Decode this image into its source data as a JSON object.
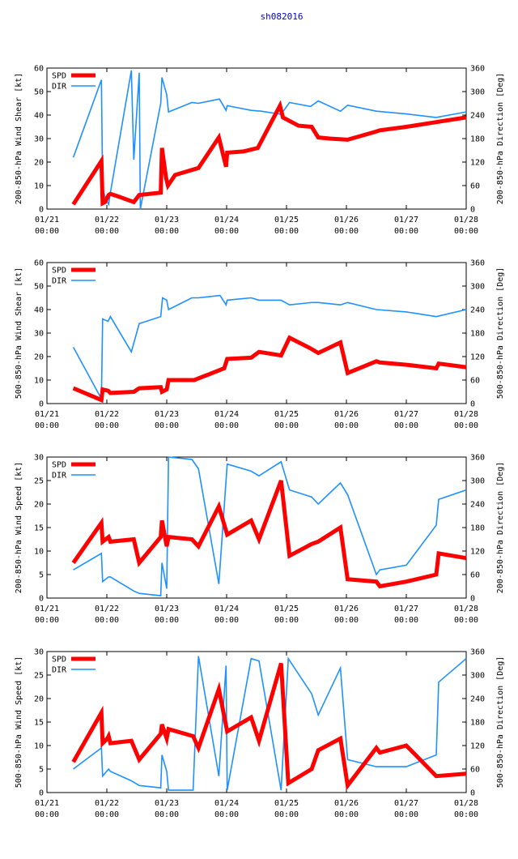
{
  "page_title": "sh082016",
  "colors": {
    "spd": "#ff0000",
    "dir": "#1e90ff",
    "title": "#0000cc"
  },
  "legend": {
    "spd_label": "SPD",
    "dir_label": "DIR"
  },
  "chart_data": [
    {
      "type": "line",
      "ylabel_left": "200-850-hPa Wind Shear [kt]",
      "ylabel_right": "200-850-hPa Direction [Deg]",
      "xlim": [
        0,
        7
      ],
      "ylim_left": [
        0,
        60
      ],
      "ylim_right": [
        0,
        360
      ],
      "x_ticks": [
        {
          "v": 0,
          "line1": "01/21",
          "line2": "00:00"
        },
        {
          "v": 1,
          "line1": "01/22",
          "line2": "00:00"
        },
        {
          "v": 2,
          "line1": "01/23",
          "line2": "00:00"
        },
        {
          "v": 3,
          "line1": "01/24",
          "line2": "00:00"
        },
        {
          "v": 4,
          "line1": "01/25",
          "line2": "00:00"
        },
        {
          "v": 5,
          "line1": "01/26",
          "line2": "00:00"
        },
        {
          "v": 6,
          "line1": "01/27",
          "line2": "00:00"
        },
        {
          "v": 7,
          "line1": "01/28",
          "line2": "00:00"
        }
      ],
      "y_ticks_left": [
        0,
        10,
        20,
        30,
        40,
        50,
        60
      ],
      "y_ticks_right": [
        0,
        60,
        120,
        180,
        240,
        300,
        360
      ],
      "series": [
        {
          "name": "SPD",
          "axis": "left",
          "x": [
            0.44,
            0.91,
            0.93,
            0.97,
            1.03,
            1.06,
            1.18,
            1.45,
            1.54,
            1.9,
            1.92,
            1.99,
            2.02,
            2.14,
            2.53,
            2.87,
            2.99,
            3.01,
            3.28,
            3.52,
            3.89,
            3.94,
            4.2,
            4.42,
            4.53,
            4.72,
            5.02,
            5.5,
            5.56,
            6.0,
            6.5,
            7.0
          ],
          "values": [
            2,
            20.5,
            2.5,
            3,
            6,
            6.5,
            5.5,
            3,
            6,
            7,
            26,
            13,
            10,
            14.5,
            17.5,
            30.5,
            18,
            24,
            24.5,
            26,
            44,
            39,
            35.5,
            35,
            30.5,
            30,
            29.5,
            33,
            33.5,
            35,
            37,
            39
          ]
        },
        {
          "name": "DIR",
          "axis": "right",
          "x": [
            0.44,
            0.91,
            0.93,
            0.97,
            1.03,
            1.06,
            1.41,
            1.45,
            1.54,
            1.56,
            1.9,
            1.92,
            2.0,
            2.03,
            2.42,
            2.53,
            2.88,
            2.99,
            3.01,
            3.41,
            3.58,
            3.91,
            4.05,
            4.4,
            4.53,
            4.9,
            5.02,
            5.5,
            6.0,
            6.5,
            7.0
          ],
          "values": [
            132,
            330,
            54,
            30,
            12,
            42,
            354,
            126,
            348,
            0,
            270,
            336,
            292,
            248,
            272,
            270,
            281,
            252,
            264,
            252,
            250,
            242,
            272,
            262,
            276,
            250,
            265,
            250,
            243,
            234,
            248
          ]
        }
      ]
    },
    {
      "type": "line",
      "ylabel_left": "500-850-hPa Wind Shear [kt]",
      "ylabel_right": "500-850-hPa Direction [Deg]",
      "xlim": [
        0,
        7
      ],
      "ylim_left": [
        0,
        60
      ],
      "ylim_right": [
        0,
        360
      ],
      "x_ticks": [
        {
          "v": 0,
          "line1": "01/21",
          "line2": "00:00"
        },
        {
          "v": 1,
          "line1": "01/22",
          "line2": "00:00"
        },
        {
          "v": 2,
          "line1": "01/23",
          "line2": "00:00"
        },
        {
          "v": 3,
          "line1": "01/24",
          "line2": "00:00"
        },
        {
          "v": 4,
          "line1": "01/25",
          "line2": "00:00"
        },
        {
          "v": 5,
          "line1": "01/26",
          "line2": "00:00"
        },
        {
          "v": 6,
          "line1": "01/27",
          "line2": "00:00"
        },
        {
          "v": 7,
          "line1": "01/28",
          "line2": "00:00"
        }
      ],
      "y_ticks_left": [
        0,
        10,
        20,
        30,
        40,
        50,
        60
      ],
      "y_ticks_right": [
        0,
        60,
        120,
        180,
        240,
        300,
        360
      ],
      "series": [
        {
          "name": "SPD",
          "axis": "left",
          "x": [
            0.44,
            0.91,
            0.93,
            1.02,
            1.06,
            1.45,
            1.54,
            1.9,
            1.92,
            2.0,
            2.03,
            2.46,
            2.96,
            3.01,
            3.41,
            3.54,
            3.91,
            4.05,
            4.4,
            4.53,
            4.9,
            5.02,
            5.5,
            5.56,
            6.0,
            6.5,
            6.54,
            7.0
          ],
          "values": [
            6.5,
            1.5,
            6,
            5.5,
            4.5,
            5,
            6.5,
            7,
            5,
            6,
            10,
            10,
            15,
            19,
            19.5,
            22,
            20.5,
            28,
            23.5,
            21.5,
            26,
            13,
            18,
            17.5,
            16.5,
            15,
            17,
            15.5
          ]
        },
        {
          "name": "DIR",
          "axis": "right",
          "x": [
            0.44,
            0.91,
            0.93,
            1.02,
            1.06,
            1.41,
            1.54,
            1.9,
            1.93,
            2.0,
            2.03,
            2.42,
            2.53,
            2.89,
            2.99,
            3.01,
            3.41,
            3.54,
            3.91,
            4.05,
            4.42,
            4.53,
            4.9,
            5.02,
            5.5,
            6.0,
            6.5,
            7.0
          ],
          "values": [
            144,
            12,
            216,
            210,
            222,
            132,
            204,
            222,
            270,
            264,
            240,
            270,
            270,
            276,
            252,
            264,
            270,
            264,
            264,
            252,
            258,
            258,
            252,
            258,
            240,
            234,
            222,
            240
          ]
        }
      ]
    },
    {
      "type": "line",
      "ylabel_left": "200-850-hPa Wind Speed [kt]",
      "ylabel_right": "200-850-hPa Direction [Deg]",
      "xlim": [
        0,
        7
      ],
      "ylim_left": [
        0,
        30
      ],
      "ylim_right": [
        0,
        360
      ],
      "x_ticks": [
        {
          "v": 0,
          "line1": "01/21",
          "line2": "00:00"
        },
        {
          "v": 1,
          "line1": "01/22",
          "line2": "00:00"
        },
        {
          "v": 2,
          "line1": "01/23",
          "line2": "00:00"
        },
        {
          "v": 3,
          "line1": "01/24",
          "line2": "00:00"
        },
        {
          "v": 4,
          "line1": "01/25",
          "line2": "00:00"
        },
        {
          "v": 5,
          "line1": "01/26",
          "line2": "00:00"
        },
        {
          "v": 6,
          "line1": "01/27",
          "line2": "00:00"
        },
        {
          "v": 7,
          "line1": "01/28",
          "line2": "00:00"
        }
      ],
      "y_ticks_left": [
        0,
        5,
        10,
        15,
        20,
        25,
        30
      ],
      "y_ticks_right": [
        0,
        60,
        120,
        180,
        240,
        300,
        360
      ],
      "series": [
        {
          "name": "SPD",
          "axis": "left",
          "x": [
            0.44,
            0.91,
            0.93,
            1.03,
            1.06,
            1.45,
            1.54,
            1.9,
            1.92,
            2.0,
            2.03,
            2.42,
            2.53,
            2.87,
            3.01,
            3.41,
            3.54,
            3.91,
            4.05,
            4.42,
            4.53,
            4.9,
            5.02,
            5.5,
            5.56,
            6.0,
            6.5,
            6.54,
            7.0
          ],
          "values": [
            7.5,
            16,
            12,
            13,
            12,
            12.5,
            7.5,
            13,
            16.5,
            11,
            13,
            12.5,
            11,
            19.5,
            13.5,
            16.5,
            12.5,
            25,
            9,
            11.5,
            12,
            15,
            4,
            3.5,
            2.5,
            3.5,
            5,
            9.5,
            8.5
          ]
        },
        {
          "name": "DIR",
          "axis": "right",
          "x": [
            0.44,
            0.91,
            0.93,
            1.03,
            1.06,
            1.45,
            1.54,
            1.9,
            1.92,
            2.0,
            2.03,
            2.42,
            2.53,
            2.87,
            3.01,
            3.41,
            3.54,
            3.91,
            4.05,
            4.42,
            4.53,
            4.9,
            5.02,
            5.5,
            5.56,
            6.0,
            6.5,
            6.54,
            7.0
          ],
          "values": [
            72,
            114,
            42,
            54,
            54,
            18,
            12,
            6,
            90,
            24,
            360,
            354,
            330,
            36,
            342,
            324,
            312,
            348,
            276,
            258,
            240,
            294,
            264,
            60,
            72,
            84,
            186,
            252,
            276
          ]
        }
      ]
    },
    {
      "type": "line",
      "ylabel_left": "500-850-hPa Wind Speed [kt]",
      "ylabel_right": "500-850-hPa Direction [Deg]",
      "xlim": [
        0,
        7
      ],
      "ylim_left": [
        0,
        30
      ],
      "ylim_right": [
        0,
        360
      ],
      "x_ticks": [
        {
          "v": 0,
          "line1": "01/21",
          "line2": "00:00"
        },
        {
          "v": 1,
          "line1": "01/22",
          "line2": "00:00"
        },
        {
          "v": 2,
          "line1": "01/23",
          "line2": "00:00"
        },
        {
          "v": 3,
          "line1": "01/24",
          "line2": "00:00"
        },
        {
          "v": 4,
          "line1": "01/25",
          "line2": "00:00"
        },
        {
          "v": 5,
          "line1": "01/26",
          "line2": "00:00"
        },
        {
          "v": 6,
          "line1": "01/27",
          "line2": "00:00"
        },
        {
          "v": 7,
          "line1": "01/28",
          "line2": "00:00"
        }
      ],
      "y_ticks_left": [
        0,
        5,
        10,
        15,
        20,
        25,
        30
      ],
      "y_ticks_right": [
        0,
        60,
        120,
        180,
        240,
        300,
        360
      ],
      "series": [
        {
          "name": "SPD",
          "axis": "left",
          "x": [
            0.44,
            0.91,
            0.93,
            1.01,
            1.03,
            1.06,
            1.41,
            1.54,
            1.9,
            1.92,
            2.0,
            2.03,
            2.44,
            2.53,
            2.87,
            3.01,
            3.41,
            3.54,
            3.91,
            4.03,
            4.42,
            4.53,
            4.9,
            5.02,
            5.5,
            5.56,
            6.0,
            6.5,
            7.0
          ],
          "values": [
            6.5,
            17,
            10.5,
            11.5,
            12,
            10.5,
            11,
            7,
            12.5,
            14.5,
            11.5,
            13.5,
            12,
            9.5,
            22,
            13,
            16,
            11,
            27.5,
            2,
            5,
            9,
            11.5,
            1.5,
            9.5,
            8.5,
            10,
            3.5,
            4
          ]
        },
        {
          "name": "DIR",
          "axis": "right",
          "x": [
            0.44,
            0.91,
            0.93,
            1.03,
            1.06,
            1.41,
            1.54,
            1.9,
            1.92,
            2.0,
            2.03,
            2.44,
            2.53,
            2.87,
            2.99,
            3.01,
            3.41,
            3.54,
            3.91,
            4.03,
            4.42,
            4.53,
            4.9,
            5.02,
            5.5,
            6.0,
            6.5,
            6.54,
            7.0
          ],
          "values": [
            60,
            114,
            42,
            60,
            54,
            30,
            18,
            12,
            96,
            54,
            6,
            6,
            348,
            42,
            324,
            6,
            342,
            336,
            6,
            342,
            252,
            198,
            318,
            84,
            66,
            66,
            96,
            282,
            342
          ]
        }
      ]
    }
  ]
}
